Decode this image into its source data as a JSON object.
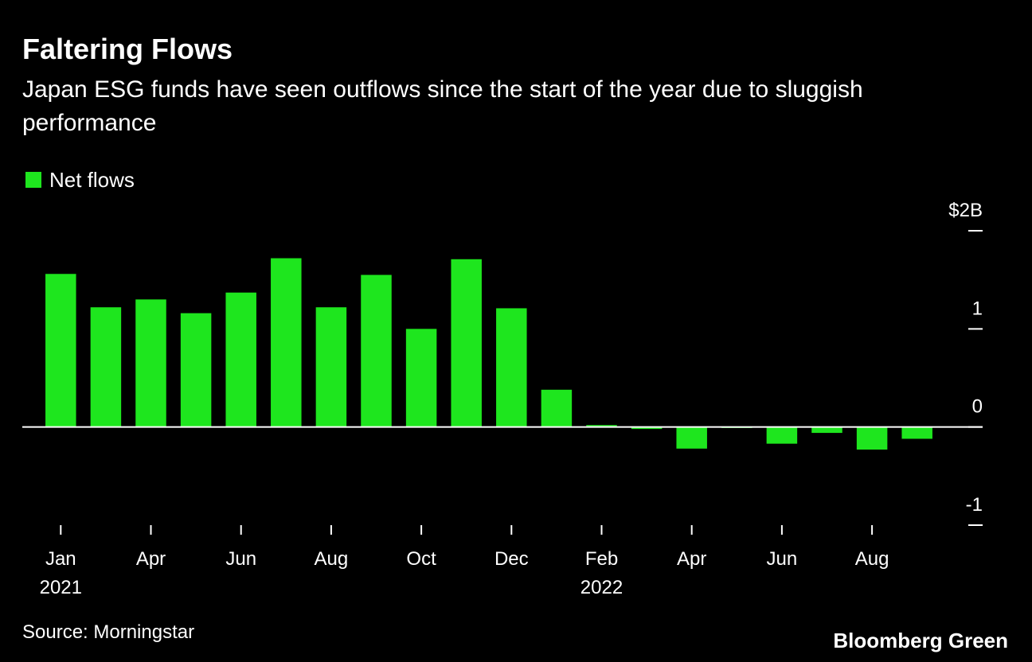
{
  "chart_data": {
    "type": "bar",
    "title": "Faltering Flows",
    "subtitle": "Japan ESG funds have seen outflows since the start of the year due to sluggish performance",
    "categories": [
      "Jan",
      null,
      "Apr",
      null,
      "Jun",
      null,
      "Aug",
      null,
      "Oct",
      null,
      "Dec",
      null,
      "Feb",
      null,
      "Apr",
      null,
      "Jun",
      null,
      "Aug",
      null
    ],
    "year_labels": [
      "2021",
      null,
      null,
      null,
      null,
      null,
      null,
      null,
      null,
      null,
      null,
      null,
      "2022",
      null,
      null,
      null,
      null,
      null,
      null,
      null
    ],
    "series": [
      {
        "name": "Net flows",
        "color": "#1ee61e",
        "values": [
          1.56,
          1.22,
          1.3,
          1.16,
          1.37,
          1.72,
          1.22,
          1.55,
          1.0,
          1.71,
          1.21,
          0.38,
          0.02,
          -0.02,
          -0.22,
          -0.01,
          -0.17,
          -0.06,
          -0.23,
          -0.12
        ]
      }
    ],
    "ylim": [
      -1,
      2
    ],
    "yticks": [
      -1,
      0,
      1,
      {
        "value": 2,
        "label": "$2B"
      }
    ],
    "source": "Source: Morningstar",
    "brand": "Bloomberg Green"
  }
}
